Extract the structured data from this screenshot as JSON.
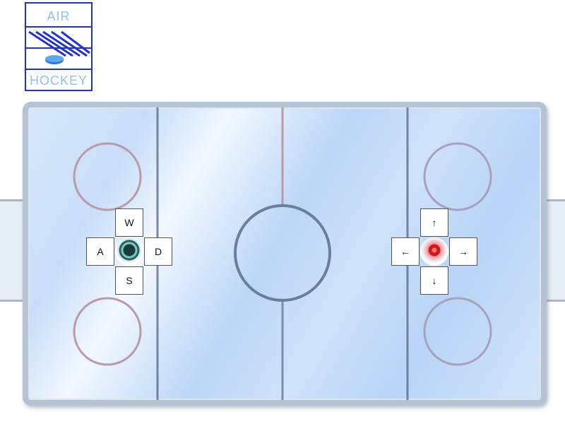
{
  "logo": {
    "line1": "AIR",
    "line2": "HOCKEY"
  },
  "player1": {
    "keys": {
      "up": "W",
      "left": "A",
      "right": "D",
      "down": "S"
    },
    "paddle_color": "#1b3a3a"
  },
  "player2": {
    "keys": {
      "up": "↑",
      "left": "←",
      "right": "→",
      "down": "↓"
    },
    "paddle_color": "#d01818"
  },
  "colors": {
    "logo_border": "#2333c9",
    "logo_text": "#8ec3f2",
    "rink_frame": "#b4c3d4",
    "center_line": "#b89aaa",
    "blue_line": "#5a6e8a",
    "faceoff_circle": "#b89aaa",
    "center_circle": "#6a7f9e"
  }
}
